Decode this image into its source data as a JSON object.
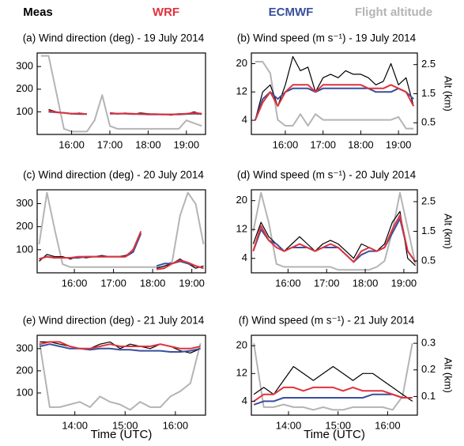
{
  "legend": [
    {
      "name": "Meas",
      "color": "#000000"
    },
    {
      "name": "WRF",
      "color": "#e0323c"
    },
    {
      "name": "ECMWF",
      "color": "#3a4f9c"
    },
    {
      "name": "Flight altitude",
      "color": "#b4b4b4"
    }
  ],
  "chart_data": [
    {
      "type": "line",
      "title": "(a) Wind direction (deg) - 19 July 2014",
      "x": [
        15.2,
        15.4,
        15.6,
        15.8,
        16.0,
        16.2,
        16.4,
        16.6,
        16.8,
        17.0,
        17.2,
        17.4,
        17.6,
        17.8,
        18.0,
        18.2,
        18.4,
        18.6,
        18.8,
        19.0,
        19.2,
        19.4
      ],
      "xlim": [
        15.1,
        19.5
      ],
      "xticks": [
        {
          "value": 16,
          "label": "16:00"
        },
        {
          "value": 17,
          "label": "17:00"
        },
        {
          "value": 18,
          "label": "18:00"
        },
        {
          "value": 19,
          "label": "19:00"
        }
      ],
      "ylim": [
        0,
        360
      ],
      "yticks": [
        100,
        200,
        300
      ],
      "y2lim": [
        0,
        2.9
      ],
      "series": [
        {
          "values": [
            null,
            110,
            100,
            95,
            90,
            95,
            90,
            null,
            null,
            95,
            90,
            95,
            90,
            95,
            92,
            88,
            90,
            85,
            92,
            90,
            100,
            90
          ]
        },
        {
          "values": [
            null,
            105,
            98,
            95,
            92,
            93,
            90,
            null,
            null,
            95,
            92,
            93,
            92,
            90,
            90,
            90,
            88,
            88,
            90,
            92,
            95,
            92
          ]
        },
        {
          "values": [
            null,
            100,
            98,
            95,
            92,
            90,
            90,
            null,
            null,
            92,
            92,
            92,
            90,
            90,
            88,
            88,
            88,
            88,
            88,
            90,
            92,
            90
          ]
        },
        {
          "axis": "y2",
          "values": [
            2.8,
            2.8,
            1.5,
            0.2,
            0.1,
            0.1,
            0.1,
            0.5,
            1.4,
            0.3,
            0.2,
            0.2,
            0.2,
            0.2,
            0.2,
            0.2,
            0.2,
            0.2,
            0.2,
            0.5,
            0.4,
            0.3
          ]
        }
      ]
    },
    {
      "type": "line",
      "title": "(b) Wind speed (m s⁻¹) - 19 July 2014",
      "y2label": "Alt (km)",
      "x": [
        15.2,
        15.4,
        15.6,
        15.8,
        16.0,
        16.2,
        16.4,
        16.6,
        16.8,
        17.0,
        17.2,
        17.4,
        17.6,
        17.8,
        18.0,
        18.2,
        18.4,
        18.6,
        18.8,
        19.0,
        19.2,
        19.4
      ],
      "xlim": [
        15.1,
        19.5
      ],
      "xticks": [
        {
          "value": 16,
          "label": "16:00"
        },
        {
          "value": 17,
          "label": "17:00"
        },
        {
          "value": 18,
          "label": "18:00"
        },
        {
          "value": 19,
          "label": "19:00"
        }
      ],
      "ylim": [
        0,
        23
      ],
      "yticks": [
        4,
        12,
        20
      ],
      "y2lim": [
        0.1,
        2.9
      ],
      "y2ticks": [
        0.5,
        1.5,
        2.5
      ],
      "series": [
        {
          "values": [
            4,
            12,
            14,
            8,
            14,
            22,
            18,
            19,
            12,
            16,
            17,
            16,
            18,
            17,
            17,
            16,
            14,
            15,
            20,
            14,
            16,
            8
          ]
        },
        {
          "values": [
            4,
            9,
            12,
            8,
            12,
            14,
            14,
            14,
            12,
            14,
            14,
            14,
            14,
            14,
            14,
            13,
            13,
            13,
            14,
            13,
            12,
            8
          ]
        },
        {
          "values": [
            4,
            10,
            12,
            10,
            12,
            13,
            13,
            13,
            12,
            13,
            13,
            13,
            13,
            13,
            13,
            13,
            12,
            12,
            12,
            13,
            12,
            10
          ]
        },
        {
          "axis": "y2",
          "values": [
            2.6,
            2.6,
            2.2,
            0.6,
            0.4,
            0.4,
            0.8,
            0.4,
            0.8,
            0.6,
            0.6,
            0.6,
            0.6,
            0.6,
            0.6,
            0.6,
            0.6,
            0.6,
            0.6,
            0.7,
            0.3,
            0.3
          ]
        }
      ]
    },
    {
      "type": "line",
      "title": "(c) Wind direction (deg) - 20 July 2014",
      "x": [
        15.1,
        15.3,
        15.5,
        15.7,
        15.9,
        16.1,
        16.3,
        16.5,
        16.7,
        16.9,
        17.1,
        17.3,
        17.5,
        17.7,
        17.9,
        18.1,
        18.3,
        18.5,
        18.7,
        18.9,
        19.1,
        19.3
      ],
      "xlim": [
        15.05,
        19.35
      ],
      "xticks": [
        {
          "value": 16,
          "label": "16:00"
        },
        {
          "value": 17,
          "label": "17:00"
        },
        {
          "value": 18,
          "label": "18:00"
        },
        {
          "value": 19,
          "label": "19:00"
        }
      ],
      "ylim": [
        0,
        360
      ],
      "yticks": [
        100,
        200,
        300
      ],
      "y2lim": [
        0,
        2.9
      ],
      "series": [
        {
          "values": [
            50,
            80,
            70,
            70,
            60,
            70,
            65,
            70,
            75,
            70,
            70,
            75,
            90,
            170,
            null,
            20,
            30,
            40,
            60,
            40,
            20,
            30
          ]
        },
        {
          "values": [
            60,
            70,
            65,
            65,
            65,
            70,
            70,
            70,
            70,
            70,
            70,
            70,
            100,
            180,
            null,
            15,
            20,
            40,
            55,
            45,
            30,
            20
          ]
        },
        {
          "values": [
            60,
            70,
            65,
            65,
            65,
            65,
            70,
            70,
            70,
            70,
            70,
            70,
            90,
            170,
            null,
            30,
            40,
            40,
            50,
            40,
            30,
            20
          ]
        },
        {
          "axis": "y2",
          "values": [
            1.0,
            2.8,
            1.5,
            0.3,
            0.2,
            0.2,
            0.2,
            0.2,
            0.2,
            0.2,
            0.2,
            0.2,
            0.2,
            0.2,
            0.2,
            0.2,
            0.2,
            0.4,
            2.0,
            2.8,
            2.4,
            1.0
          ]
        }
      ]
    },
    {
      "type": "line",
      "title": "(d) Wind speed (m s⁻¹) - 20 July 2014",
      "y2label": "Alt (km)",
      "x": [
        15.1,
        15.3,
        15.5,
        15.7,
        15.9,
        16.1,
        16.3,
        16.5,
        16.7,
        16.9,
        17.1,
        17.3,
        17.5,
        17.7,
        17.9,
        18.1,
        18.3,
        18.5,
        18.7,
        18.9,
        19.1,
        19.3
      ],
      "xlim": [
        15.05,
        19.35
      ],
      "xticks": [
        {
          "value": 16,
          "label": "16:00"
        },
        {
          "value": 17,
          "label": "17:00"
        },
        {
          "value": 18,
          "label": "18:00"
        },
        {
          "value": 19,
          "label": "19:00"
        }
      ],
      "ylim": [
        0,
        23
      ],
      "yticks": [
        4,
        12,
        20
      ],
      "y2lim": [
        0.1,
        2.9
      ],
      "y2ticks": [
        0.5,
        1.5,
        2.5
      ],
      "series": [
        {
          "values": [
            8,
            14,
            10,
            8,
            6,
            8,
            10,
            8,
            6,
            8,
            9,
            8,
            6,
            4,
            8,
            7,
            6,
            8,
            14,
            17,
            4,
            2
          ]
        },
        {
          "values": [
            6,
            13,
            9,
            7,
            6,
            7,
            8,
            7,
            6,
            7,
            8,
            7,
            5,
            3,
            6,
            7,
            6,
            7,
            12,
            16,
            6,
            3
          ]
        },
        {
          "values": [
            6,
            12,
            9,
            8,
            6,
            7,
            7,
            7,
            6,
            7,
            7,
            7,
            5,
            3,
            5,
            6,
            6,
            7,
            11,
            15,
            6,
            3
          ]
        },
        {
          "axis": "y2",
          "values": [
            1.5,
            2.8,
            1.8,
            0.4,
            0.3,
            0.3,
            0.3,
            0.3,
            0.3,
            0.3,
            0.3,
            0.2,
            0.2,
            0.2,
            0.2,
            0.2,
            0.3,
            0.5,
            1.5,
            2.8,
            1.6,
            0.4
          ]
        }
      ]
    },
    {
      "type": "line",
      "title": "(e) Wind direction (deg) - 21 July 2014",
      "xlabel": "Time (UTC)",
      "x": [
        13.3,
        13.5,
        13.7,
        13.9,
        14.1,
        14.3,
        14.5,
        14.7,
        14.9,
        15.1,
        15.3,
        15.5,
        15.7,
        15.9,
        16.1,
        16.3,
        16.5
      ],
      "xlim": [
        13.25,
        16.6
      ],
      "xticks": [
        {
          "value": 14,
          "label": "14:00"
        },
        {
          "value": 15,
          "label": "15:00"
        },
        {
          "value": 16,
          "label": "16:00"
        }
      ],
      "ylim": [
        0,
        360
      ],
      "yticks": [
        100,
        200,
        300
      ],
      "y2lim": [
        0.03,
        0.33
      ],
      "series": [
        {
          "values": [
            330,
            330,
            320,
            310,
            300,
            300,
            320,
            330,
            300,
            320,
            310,
            300,
            320,
            310,
            290,
            280,
            300
          ]
        },
        {
          "values": [
            320,
            330,
            330,
            310,
            300,
            300,
            310,
            320,
            310,
            310,
            310,
            310,
            320,
            310,
            300,
            300,
            310
          ]
        },
        {
          "values": [
            310,
            320,
            310,
            300,
            300,
            295,
            300,
            300,
            295,
            295,
            290,
            290,
            290,
            285,
            285,
            290,
            300
          ]
        },
        {
          "axis": "y2",
          "values": [
            0.3,
            0.06,
            0.06,
            0.07,
            0.08,
            0.06,
            0.1,
            0.08,
            0.07,
            0.05,
            0.08,
            0.06,
            0.06,
            0.1,
            0.12,
            0.15,
            0.3
          ]
        }
      ]
    },
    {
      "type": "line",
      "title": "(f) Wind speed (m s⁻¹) - 21 July 2014",
      "xlabel": "Time (UTC)",
      "y2label": "Alt (km)",
      "x": [
        13.3,
        13.5,
        13.7,
        13.9,
        14.1,
        14.3,
        14.5,
        14.7,
        14.9,
        15.1,
        15.3,
        15.5,
        15.7,
        15.9,
        16.1,
        16.3,
        16.5
      ],
      "xlim": [
        13.25,
        16.6
      ],
      "xticks": [
        {
          "value": 14,
          "label": "14:00"
        },
        {
          "value": 15,
          "label": "15:00"
        },
        {
          "value": 16,
          "label": "16:00"
        }
      ],
      "ylim": [
        0,
        23
      ],
      "yticks": [
        4,
        12,
        20
      ],
      "y2lim": [
        0.03,
        0.33
      ],
      "y2ticks": [
        0.1,
        0.2,
        0.3
      ],
      "series": [
        {
          "values": [
            6,
            8,
            6,
            10,
            14,
            12,
            10,
            12,
            14,
            12,
            10,
            12,
            12,
            10,
            8,
            6,
            4
          ]
        },
        {
          "values": [
            4,
            6,
            6,
            8,
            8,
            7,
            8,
            8,
            8,
            7,
            8,
            7,
            7,
            7,
            6,
            5,
            5
          ]
        },
        {
          "values": [
            3,
            4,
            4,
            5,
            5,
            5,
            5,
            5,
            5,
            5,
            5,
            5,
            6,
            6,
            6,
            5,
            5
          ]
        },
        {
          "axis": "y2",
          "values": [
            0.3,
            0.06,
            0.06,
            0.07,
            0.06,
            0.06,
            0.05,
            0.06,
            0.05,
            0.05,
            0.06,
            0.06,
            0.06,
            0.06,
            0.05,
            0.1,
            0.3
          ]
        }
      ]
    }
  ]
}
